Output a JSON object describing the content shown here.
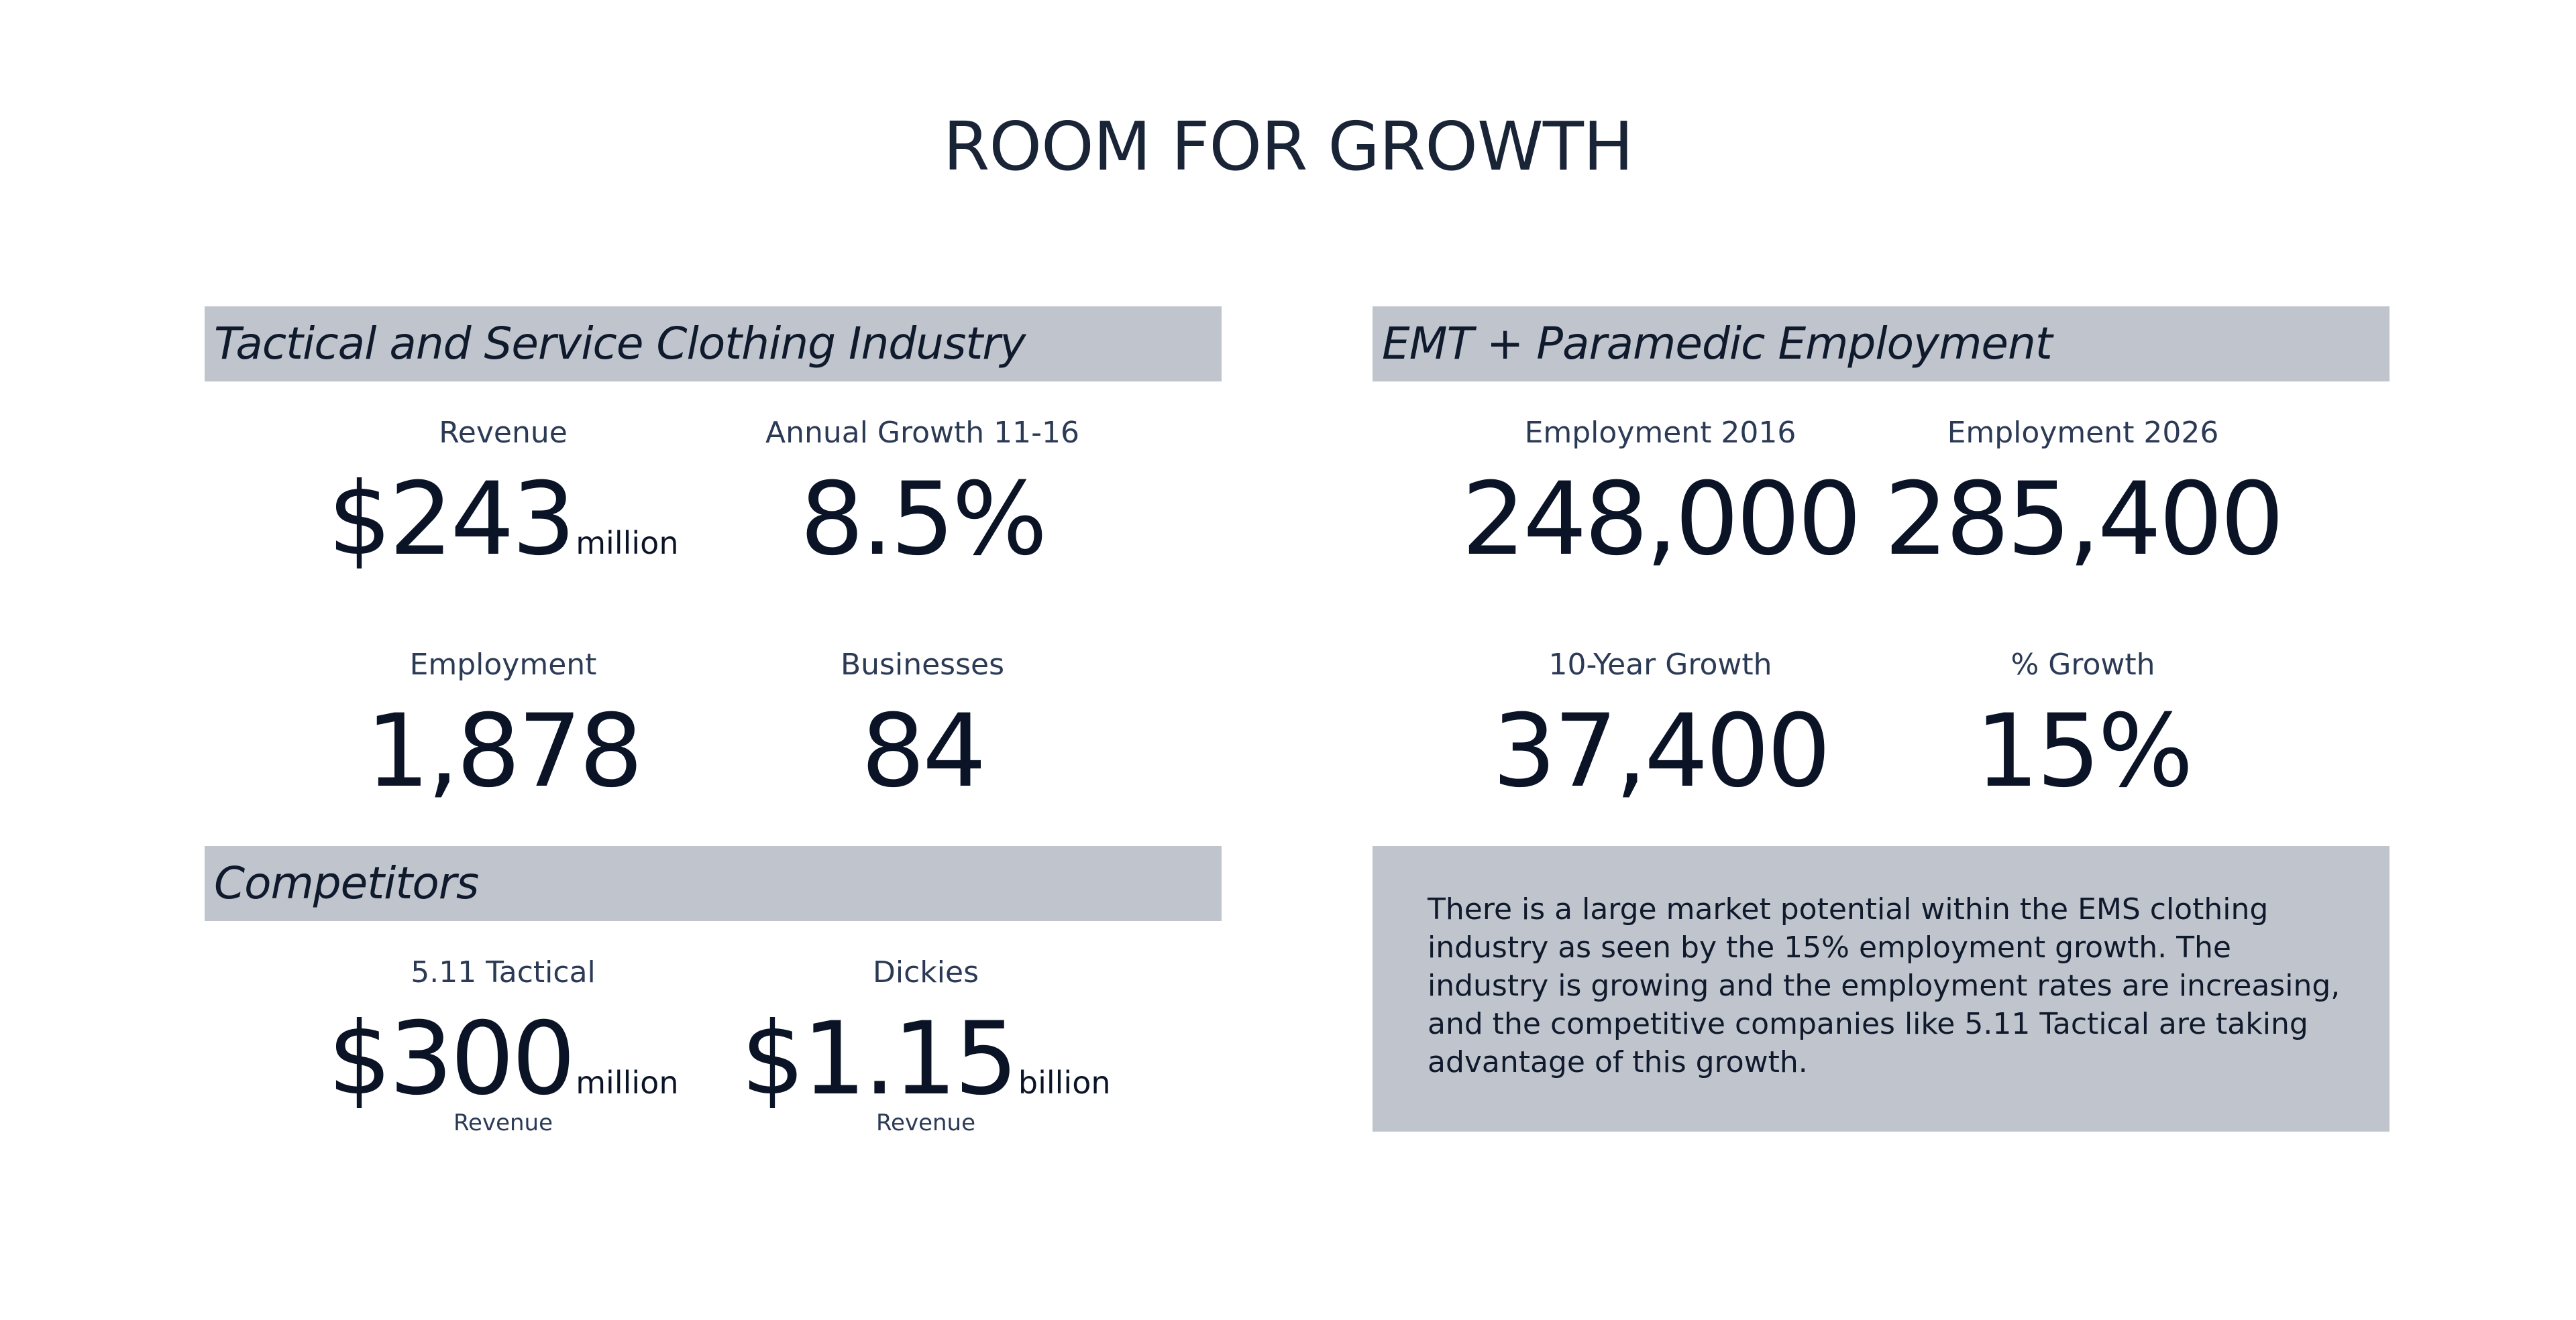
{
  "title": "ROOM FOR GROWTH",
  "sections": {
    "industry": {
      "heading": "Tactical and Service Clothing Industry",
      "revenue": {
        "label": "Revenue",
        "value": "$243",
        "unit": "million"
      },
      "annual_growth": {
        "label": "Annual Growth 11-16",
        "value": "8.5%"
      },
      "employment": {
        "label": "Employment",
        "value": "1,878"
      },
      "businesses": {
        "label": "Businesses",
        "value": "84"
      }
    },
    "competitors": {
      "heading": "Competitors",
      "items": [
        {
          "label": "5.11 Tactical",
          "value": "$300",
          "unit": "million",
          "sub_label": "Revenue"
        },
        {
          "label": "Dickies",
          "value": "$1.15",
          "unit": "billion",
          "sub_label": "Revenue"
        }
      ]
    },
    "emt": {
      "heading": "EMT + Paramedic Employment",
      "employment_2016": {
        "label": "Employment 2016",
        "value": "248,000"
      },
      "employment_2026": {
        "label": "Employment 2026",
        "value": "285,400"
      },
      "ten_year_growth": {
        "label": "10-Year Growth",
        "value": "37,400"
      },
      "percent_growth": {
        "label": "% Growth",
        "value": "15%"
      }
    },
    "note": {
      "text": "There is a large market potential within the EMS clothing industry as seen by the 15% employment growth. The industry is growing and the employment rates are increasing, and the competitive companies like 5.11 Tactical are taking advantage of this growth."
    }
  }
}
